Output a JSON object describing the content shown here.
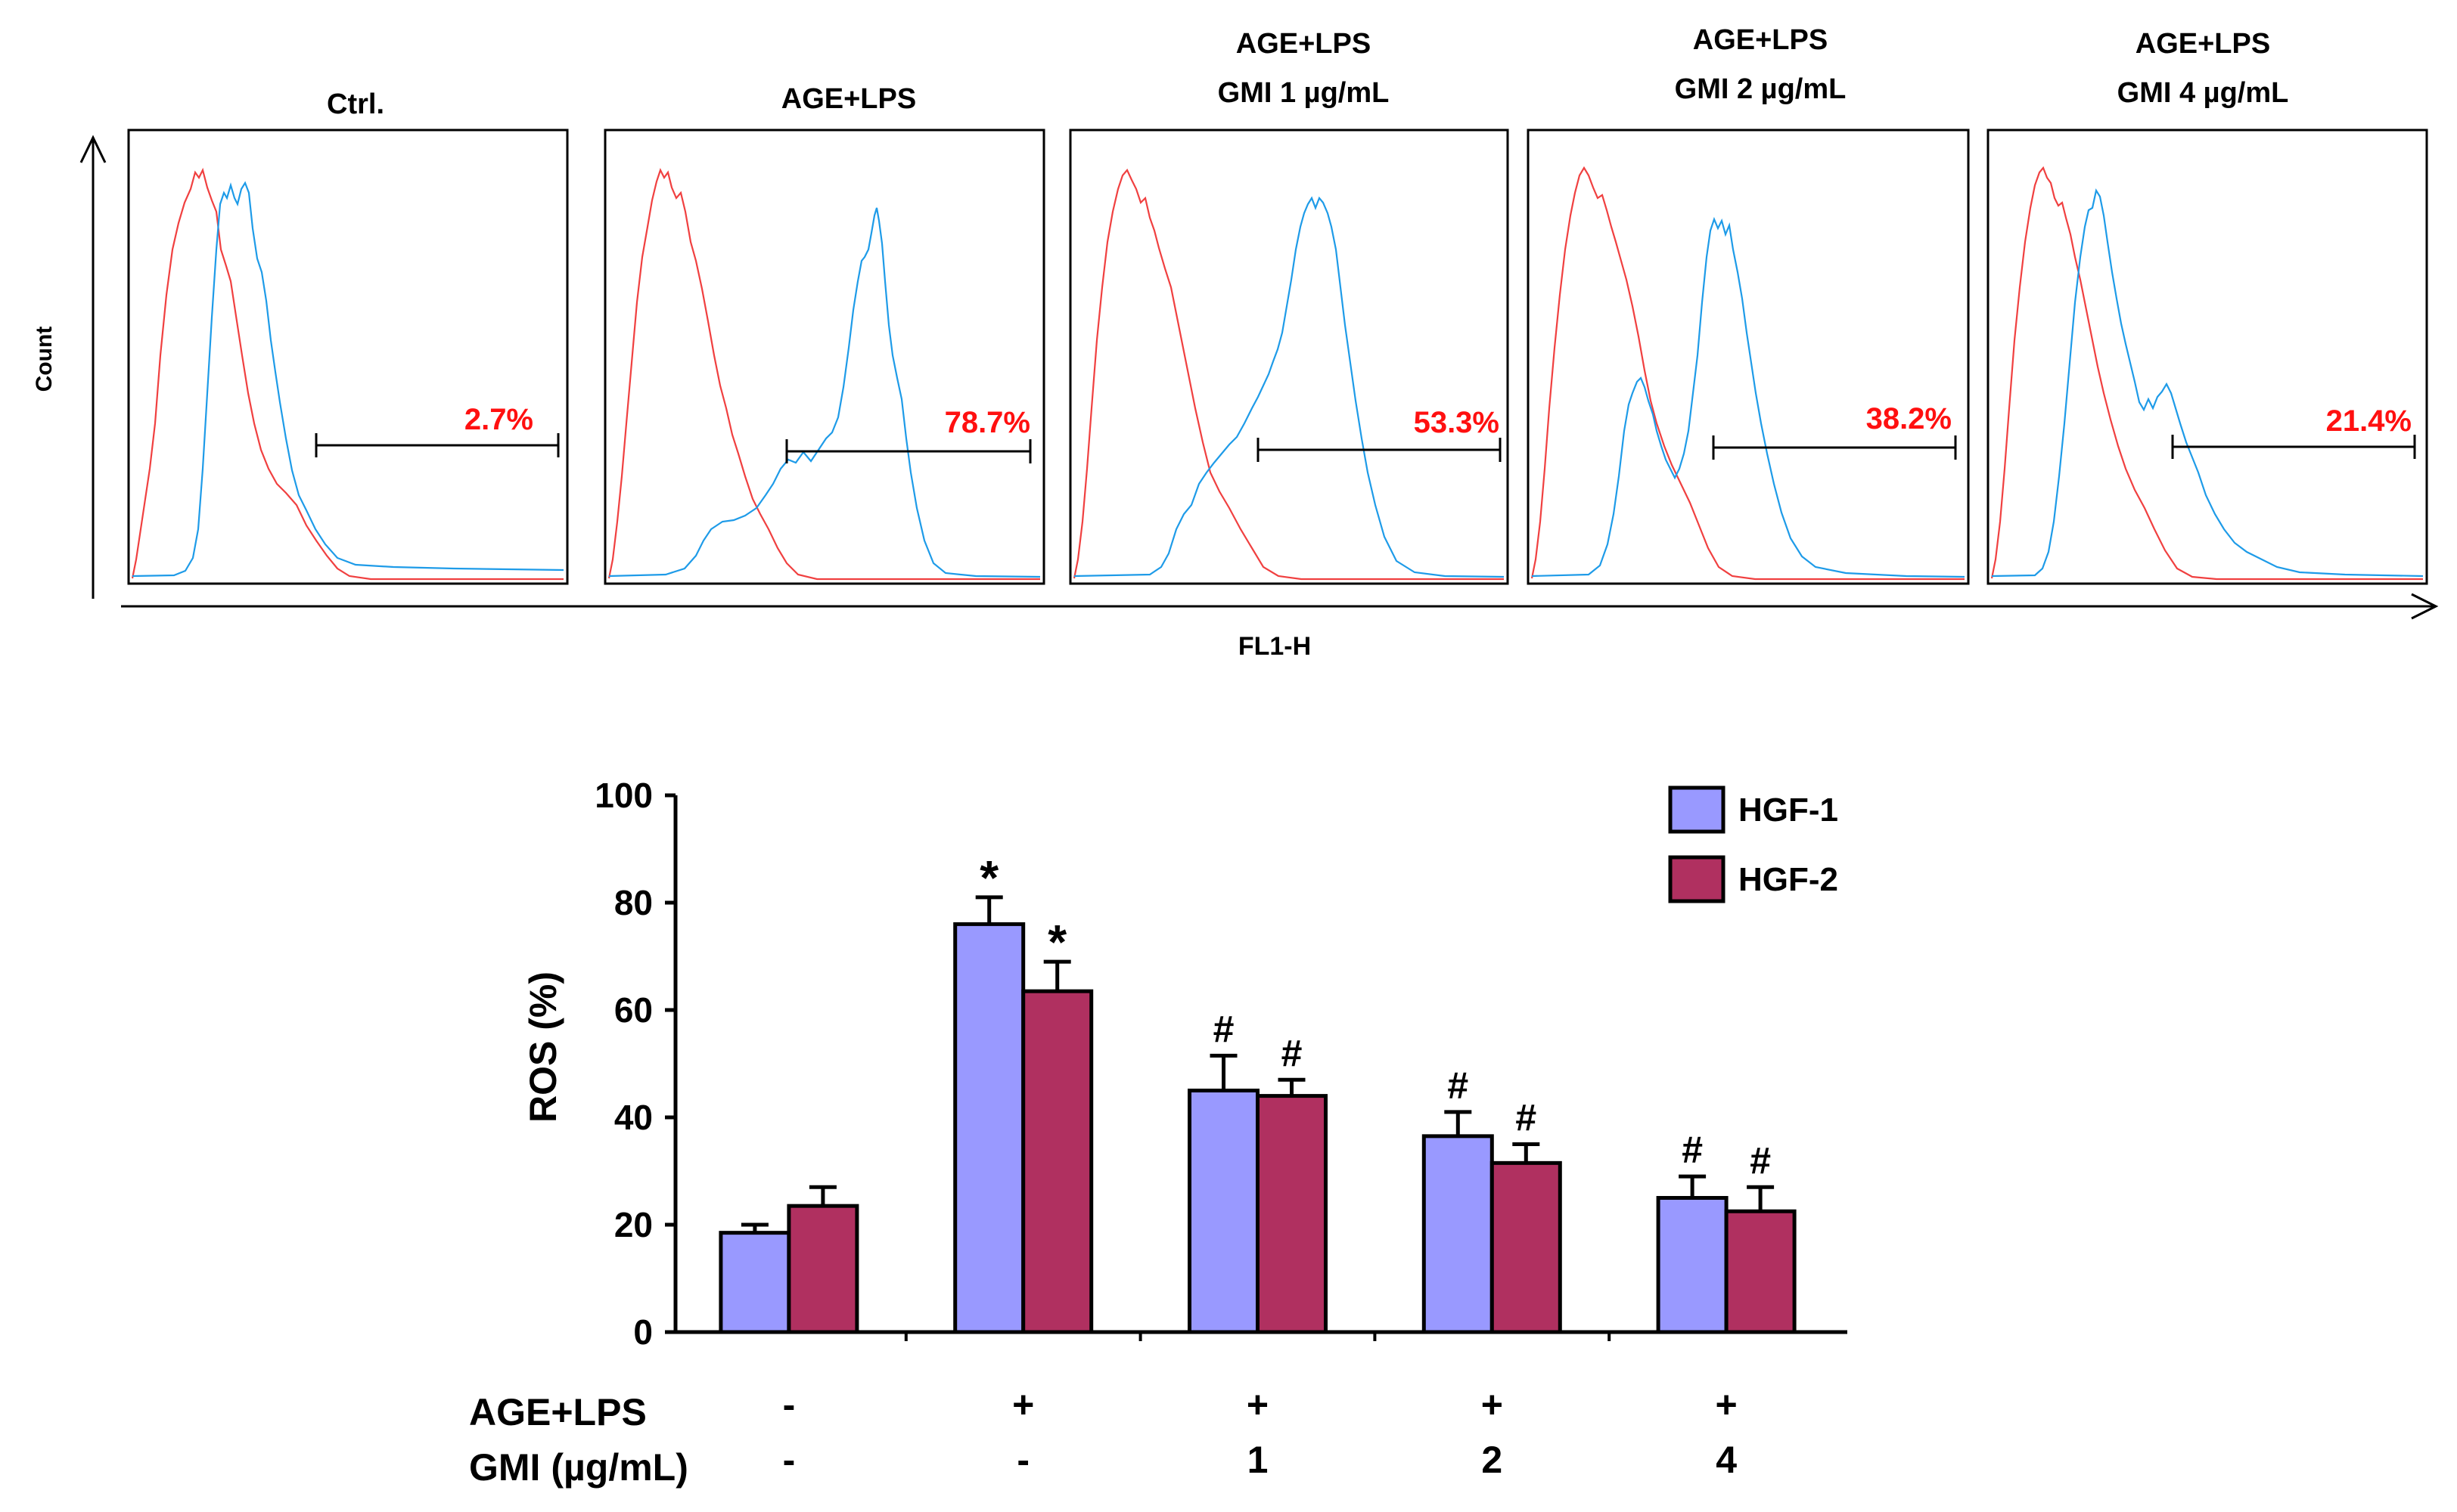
{
  "histograms": {
    "y_axis_label": "Count",
    "x_axis_label": "FL1-H",
    "panels": [
      {
        "title_lines": [
          "Ctrl."
        ],
        "percent": "2.7%"
      },
      {
        "title_lines": [
          "AGE+LPS"
        ],
        "percent": "78.7%"
      },
      {
        "title_lines": [
          "AGE+LPS",
          "GMI 1 µg/mL"
        ],
        "percent": "53.3%"
      },
      {
        "title_lines": [
          "AGE+LPS",
          "GMI 2 µg/mL"
        ],
        "percent": "38.2%"
      },
      {
        "title_lines": [
          "AGE+LPS",
          "GMI 4 µg/mL"
        ],
        "percent": "21.4%"
      }
    ]
  },
  "chart_data": {
    "type": "bar",
    "ylabel": "ROS (%)",
    "ylim": [
      0,
      100
    ],
    "yticks": [
      0,
      20,
      40,
      60,
      80,
      100
    ],
    "categories": [
      "Ctrl.",
      "AGE+LPS",
      "AGE+LPS + GMI 1",
      "AGE+LPS + GMI 2",
      "AGE+LPS + GMI 4"
    ],
    "series": [
      {
        "name": "HGF-1",
        "color": "#9999FF",
        "values": [
          18.5,
          76,
          45,
          36.5,
          25
        ],
        "errors": [
          1.5,
          5,
          6.5,
          4.5,
          4
        ],
        "marks": [
          "",
          "*",
          "#",
          "#",
          "#"
        ]
      },
      {
        "name": "HGF-2",
        "color": "#B03060",
        "values": [
          23.5,
          63.5,
          44,
          31.5,
          22.5
        ],
        "errors": [
          3.5,
          5.5,
          3,
          3.5,
          4.5
        ],
        "marks": [
          "",
          "*",
          "#",
          "#",
          "#"
        ]
      }
    ],
    "treatment_rows": [
      {
        "label": "AGE+LPS",
        "values": [
          "-",
          "+",
          "+",
          "+",
          "+"
        ]
      },
      {
        "label": "GMI (µg/mL)",
        "values": [
          "-",
          "-",
          "1",
          "2",
          "4"
        ]
      }
    ]
  }
}
